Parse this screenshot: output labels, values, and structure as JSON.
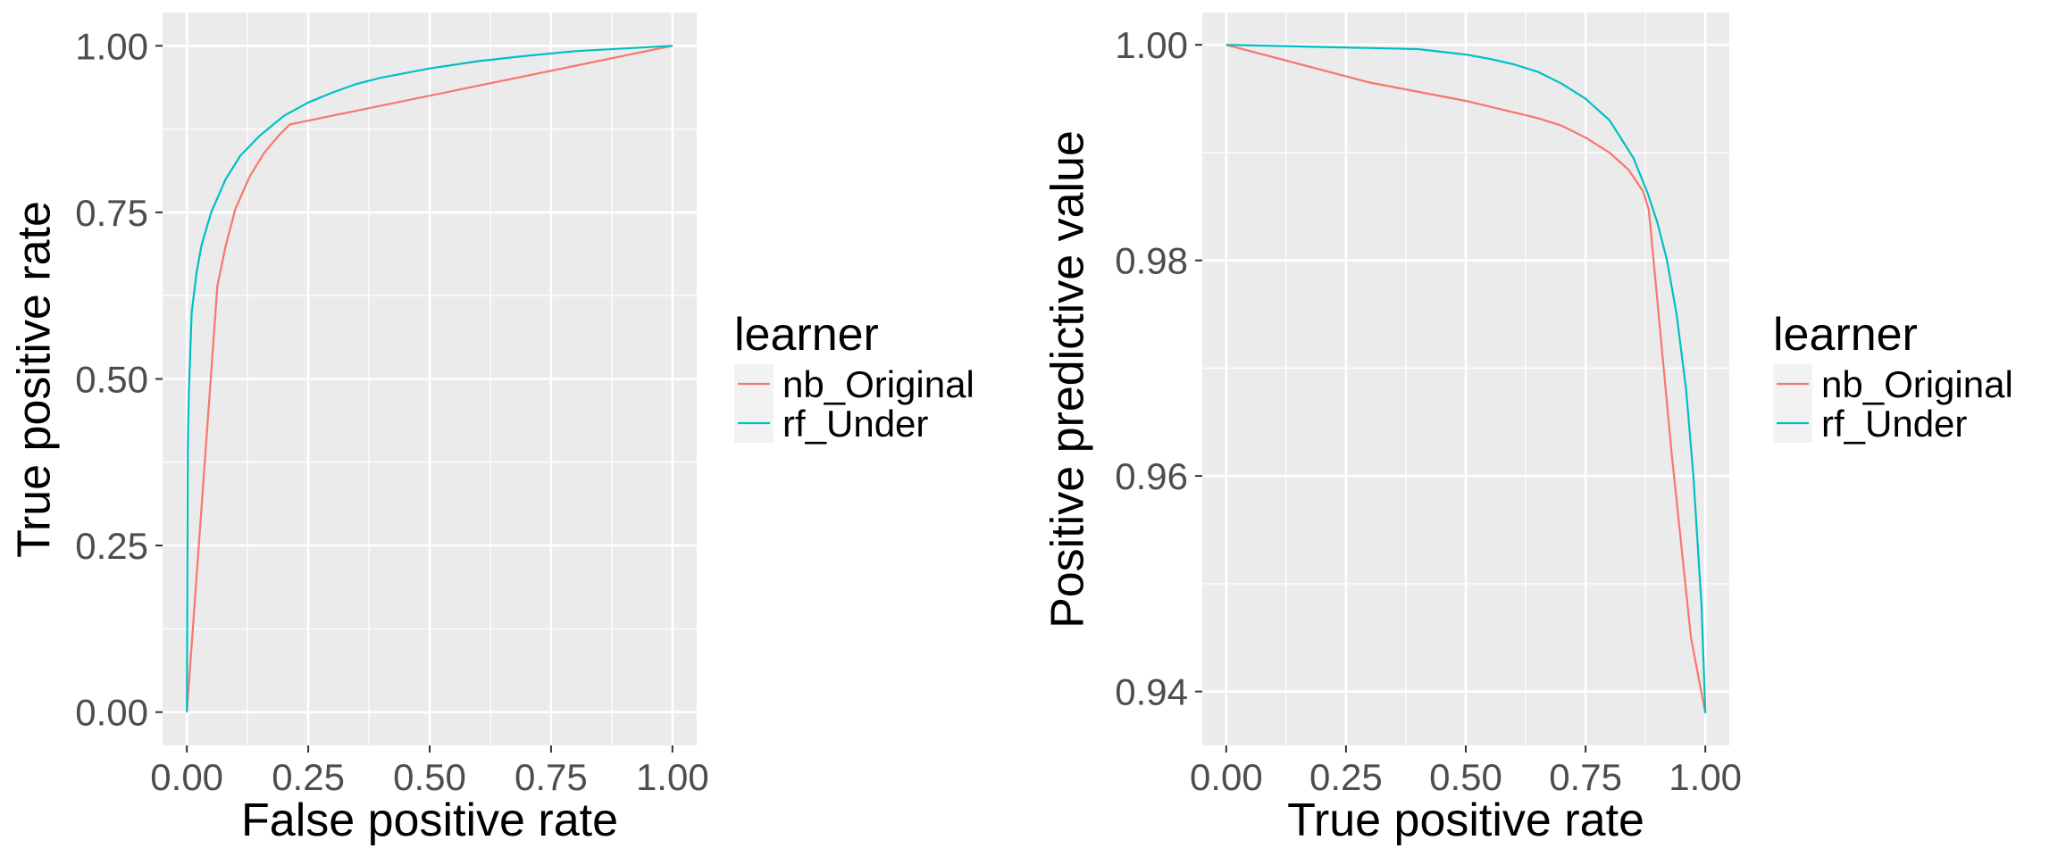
{
  "chart_data": [
    {
      "type": "line",
      "xlabel": "False positive rate",
      "ylabel": "True positive rate",
      "xlim": [
        -0.05,
        1.05
      ],
      "ylim": [
        -0.05,
        1.05
      ],
      "x_ticks": [
        0.0,
        0.25,
        0.5,
        0.75,
        1.0
      ],
      "x_tick_labels": [
        "0.00",
        "0.25",
        "0.50",
        "0.75",
        "1.00"
      ],
      "y_ticks": [
        0.0,
        0.25,
        0.5,
        0.75,
        1.0
      ],
      "y_tick_labels": [
        "0.00",
        "0.25",
        "0.50",
        "0.75",
        "1.00"
      ],
      "grid": true,
      "legend": {
        "title": "learner",
        "position": "right"
      },
      "series": [
        {
          "name": "nb_Original",
          "color": "#F8766D",
          "points": [
            [
              0.0,
              0.0
            ],
            [
              0.063,
              0.64
            ],
            [
              0.08,
              0.7
            ],
            [
              0.1,
              0.755
            ],
            [
              0.13,
              0.805
            ],
            [
              0.16,
              0.84
            ],
            [
              0.19,
              0.866
            ],
            [
              0.212,
              0.882
            ],
            [
              1.0,
              1.0
            ]
          ]
        },
        {
          "name": "rf_Under",
          "color": "#00BFC4",
          "points": [
            [
              0.0,
              0.0
            ],
            [
              0.002,
              0.4
            ],
            [
              0.004,
              0.48
            ],
            [
              0.01,
              0.6
            ],
            [
              0.02,
              0.66
            ],
            [
              0.03,
              0.7
            ],
            [
              0.05,
              0.75
            ],
            [
              0.08,
              0.8
            ],
            [
              0.11,
              0.835
            ],
            [
              0.15,
              0.865
            ],
            [
              0.2,
              0.895
            ],
            [
              0.25,
              0.915
            ],
            [
              0.3,
              0.93
            ],
            [
              0.35,
              0.943
            ],
            [
              0.4,
              0.952
            ],
            [
              0.5,
              0.966
            ],
            [
              0.6,
              0.977
            ],
            [
              0.7,
              0.985
            ],
            [
              0.8,
              0.992
            ],
            [
              0.9,
              0.996
            ],
            [
              1.0,
              1.0
            ]
          ]
        }
      ]
    },
    {
      "type": "line",
      "xlabel": "True positive rate",
      "ylabel": "Positive predictive value",
      "xlim": [
        -0.05,
        1.05
      ],
      "ylim": [
        0.935,
        1.003
      ],
      "x_ticks": [
        0.0,
        0.25,
        0.5,
        0.75,
        1.0
      ],
      "x_tick_labels": [
        "0.00",
        "0.25",
        "0.50",
        "0.75",
        "1.00"
      ],
      "y_ticks": [
        0.94,
        0.96,
        0.98,
        1.0
      ],
      "y_tick_labels": [
        "0.94",
        "0.96",
        "0.98",
        "1.00"
      ],
      "grid": true,
      "legend": {
        "title": "learner",
        "position": "right"
      },
      "series": [
        {
          "name": "nb_Original",
          "color": "#F8766D",
          "points": [
            [
              0.0,
              1.0
            ],
            [
              0.3,
              0.9965
            ],
            [
              0.5,
              0.9948
            ],
            [
              0.65,
              0.9932
            ],
            [
              0.7,
              0.9925
            ],
            [
              0.75,
              0.9914
            ],
            [
              0.8,
              0.99
            ],
            [
              0.84,
              0.9884
            ],
            [
              0.87,
              0.9864
            ],
            [
              0.882,
              0.9847
            ],
            [
              0.93,
              0.962
            ],
            [
              0.97,
              0.945
            ],
            [
              1.0,
              0.938
            ]
          ]
        },
        {
          "name": "rf_Under",
          "color": "#00BFC4",
          "points": [
            [
              0.0,
              1.0
            ],
            [
              0.2,
              0.9998
            ],
            [
              0.4,
              0.9996
            ],
            [
              0.5,
              0.9991
            ],
            [
              0.55,
              0.9987
            ],
            [
              0.6,
              0.9982
            ],
            [
              0.65,
              0.9975
            ],
            [
              0.7,
              0.9964
            ],
            [
              0.75,
              0.995
            ],
            [
              0.8,
              0.993
            ],
            [
              0.85,
              0.9895
            ],
            [
              0.88,
              0.9862
            ],
            [
              0.9,
              0.9835
            ],
            [
              0.92,
              0.98
            ],
            [
              0.94,
              0.975
            ],
            [
              0.96,
              0.968
            ],
            [
              0.975,
              0.96
            ],
            [
              0.985,
              0.953
            ],
            [
              0.992,
              0.948
            ],
            [
              1.0,
              0.938
            ]
          ]
        }
      ]
    }
  ]
}
